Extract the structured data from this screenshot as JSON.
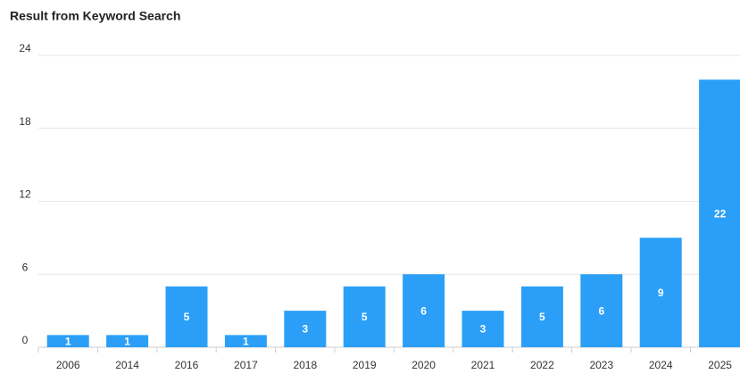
{
  "chart_data": {
    "type": "bar",
    "title": "Result from Keyword Search",
    "categories": [
      "2006",
      "2014",
      "2016",
      "2017",
      "2018",
      "2019",
      "2020",
      "2021",
      "2022",
      "2023",
      "2024",
      "2025"
    ],
    "values": [
      1,
      1,
      5,
      1,
      3,
      5,
      6,
      3,
      5,
      6,
      9,
      22
    ],
    "color": "#2b9ff7",
    "ylim": [
      0,
      24
    ],
    "yticks": [
      0,
      6,
      12,
      18,
      24
    ],
    "grid": true
  }
}
